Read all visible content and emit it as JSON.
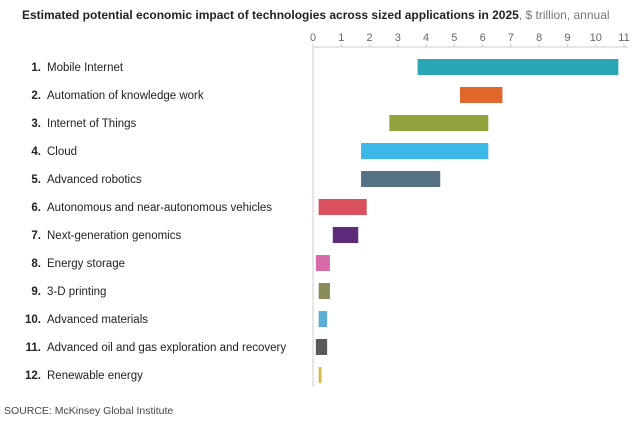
{
  "chart_data": {
    "type": "bar",
    "orientation": "horizontal-range",
    "title": "Estimated potential economic impact of technologies across sized applications in 2025",
    "subtitle": ", $ trillion, annual",
    "xlim": [
      0,
      11
    ],
    "x_ticks": [
      "0",
      "1",
      "2",
      "3",
      "4",
      "5",
      "6",
      "7",
      "8",
      "9",
      "10",
      "11"
    ],
    "grid": false,
    "categories": [
      {
        "num": "1.",
        "label": "Mobile Internet",
        "low": 3.7,
        "high": 10.8,
        "color": "#2aa6b5"
      },
      {
        "num": "2.",
        "label": "Automation of knowledge work",
        "low": 5.2,
        "high": 6.7,
        "color": "#e0662a"
      },
      {
        "num": "3.",
        "label": "Internet of Things",
        "low": 2.7,
        "high": 6.2,
        "color": "#93a23a"
      },
      {
        "num": "4.",
        "label": "Cloud",
        "low": 1.7,
        "high": 6.2,
        "color": "#3bb8e8"
      },
      {
        "num": "5.",
        "label": "Advanced robotics",
        "low": 1.7,
        "high": 4.5,
        "color": "#567184"
      },
      {
        "num": "6.",
        "label": "Autonomous and near-autonomous vehicles",
        "low": 0.2,
        "high": 1.9,
        "color": "#d9505e"
      },
      {
        "num": "7.",
        "label": "Next-generation genomics",
        "low": 0.7,
        "high": 1.6,
        "color": "#5e2a7a"
      },
      {
        "num": "8.",
        "label": "Energy storage",
        "low": 0.1,
        "high": 0.6,
        "color": "#d96aaa"
      },
      {
        "num": "9.",
        "label": "3-D printing",
        "low": 0.2,
        "high": 0.6,
        "color": "#8a8a5a"
      },
      {
        "num": "10.",
        "label": "Advanced materials",
        "low": 0.2,
        "high": 0.5,
        "color": "#5aaed6"
      },
      {
        "num": "11.",
        "label": "Advanced oil and gas exploration and recovery",
        "low": 0.1,
        "high": 0.5,
        "color": "#5a5a5a"
      },
      {
        "num": "12.",
        "label": "Renewable energy",
        "low": 0.2,
        "high": 0.3,
        "color": "#d6b84a"
      }
    ]
  },
  "source": "SOURCE: McKinsey Global Institute"
}
